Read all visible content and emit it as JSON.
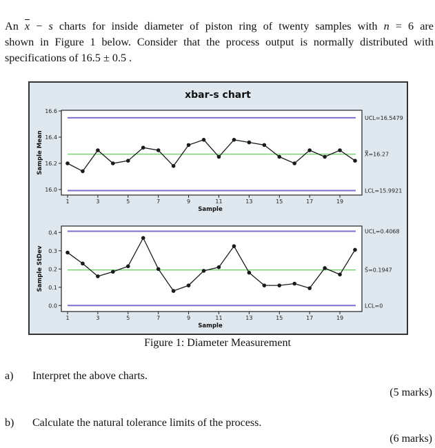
{
  "intro": {
    "line1_prefix": "An",
    "line1_xbar": "x",
    "line1_minus": " − ",
    "line1_s": "s",
    "line1_mid": " charts for inside diameter of piston ring of twenty samples with ",
    "line1_n": "n",
    "line1_eq": " = 6 are",
    "line2": "shown in Figure 1 below. Consider that the process output is normally distributed with",
    "line3": "specifications of 16.5 ± 0.5 ."
  },
  "figure": {
    "caption": "Figure 1:  Diameter Measurement"
  },
  "questions": [
    {
      "label": "a)",
      "text": "Interpret the above charts.",
      "marks": "(5 marks)"
    },
    {
      "label": "b)",
      "text": "Calculate the natural tolerance limits of the process.",
      "marks": "(6 marks)"
    }
  ],
  "colors": {
    "frame_bg": "#dfe8ee",
    "plot_bg": "#ffffff",
    "limit_line": "#7b6fd0",
    "center_line": "#6fd46f",
    "data_line": "#1a1a1a"
  },
  "chart_data": [
    {
      "type": "line",
      "title": "xbar-s chart",
      "xlabel": "Sample",
      "ylabel": "Sample Mean",
      "x": [
        1,
        2,
        3,
        4,
        5,
        6,
        7,
        8,
        9,
        10,
        11,
        12,
        13,
        14,
        15,
        16,
        17,
        18,
        19,
        20
      ],
      "x_ticks": [
        1,
        3,
        5,
        7,
        9,
        11,
        13,
        15,
        17,
        19
      ],
      "y_ticks": [
        "16.0",
        "16.2",
        "16.4",
        "16.6"
      ],
      "ylim": [
        16.0,
        16.6
      ],
      "values": [
        16.2,
        16.14,
        16.3,
        16.2,
        16.22,
        16.32,
        16.3,
        16.18,
        16.34,
        16.38,
        16.25,
        16.38,
        16.36,
        16.34,
        16.25,
        16.2,
        16.3,
        16.25,
        16.3,
        16.22
      ],
      "control_limits": {
        "UCL": 16.5479,
        "CL": 16.27,
        "LCL": 15.9921
      },
      "limit_labels": {
        "UCL": "UCL=16.5479",
        "CL": "X̿=16.27",
        "LCL": "LCL=15.9921"
      },
      "grid": false
    },
    {
      "type": "line",
      "title": "",
      "xlabel": "Sample",
      "ylabel": "Sample StDev",
      "x": [
        1,
        2,
        3,
        4,
        5,
        6,
        7,
        8,
        9,
        10,
        11,
        12,
        13,
        14,
        15,
        16,
        17,
        18,
        19,
        20
      ],
      "x_ticks": [
        1,
        3,
        5,
        7,
        9,
        11,
        13,
        15,
        17,
        19
      ],
      "y_ticks": [
        "0.0",
        "0.1",
        "0.2",
        "0.3",
        "0.4"
      ],
      "ylim": [
        0.0,
        0.4
      ],
      "values": [
        0.29,
        0.23,
        0.16,
        0.185,
        0.215,
        0.37,
        0.2,
        0.08,
        0.11,
        0.19,
        0.21,
        0.325,
        0.18,
        0.11,
        0.11,
        0.12,
        0.095,
        0.205,
        0.17,
        0.305
      ],
      "control_limits": {
        "UCL": 0.4068,
        "CL": 0.1947,
        "LCL": 0
      },
      "limit_labels": {
        "UCL": "UCL=0.4068",
        "CL": "S̄=0.1947",
        "LCL": "LCL=0"
      },
      "grid": false
    }
  ]
}
